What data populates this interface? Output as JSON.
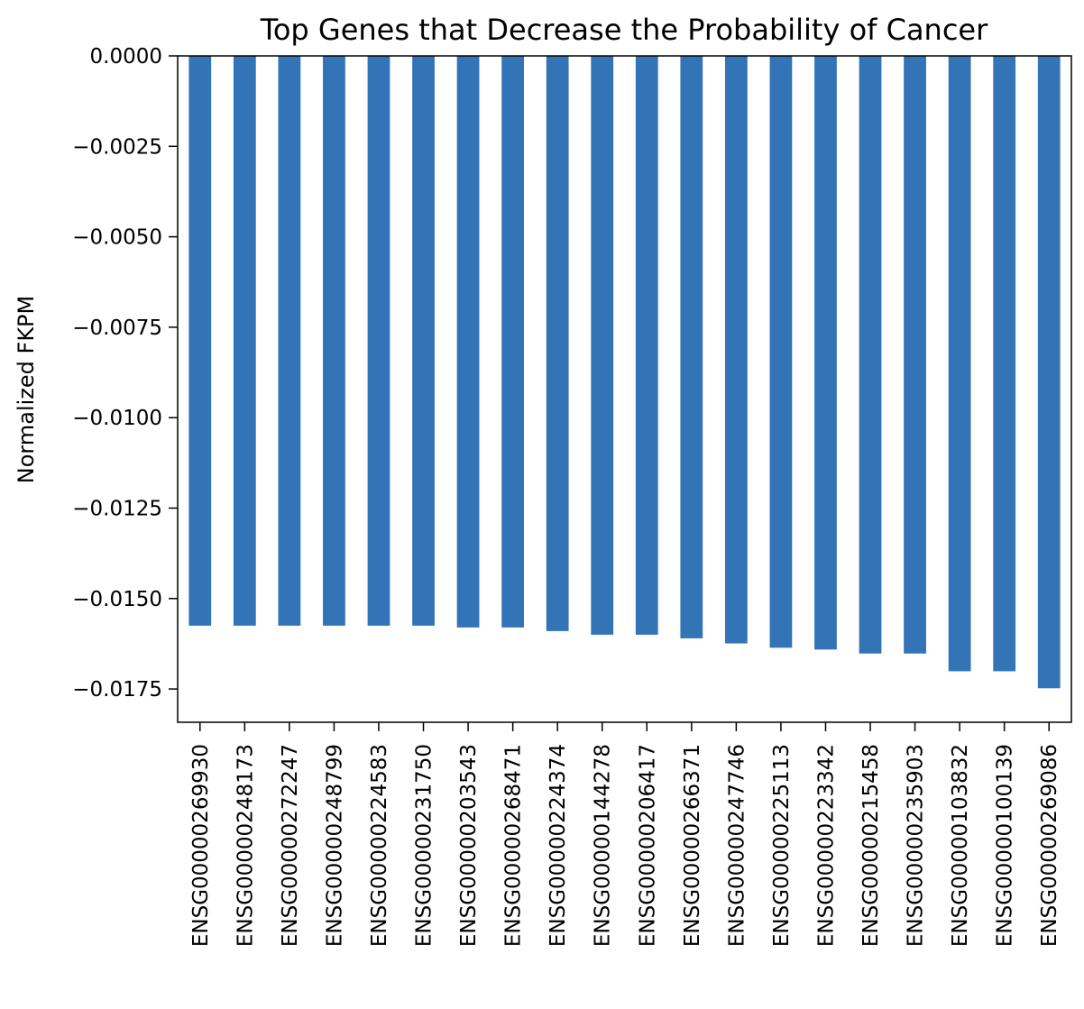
{
  "chart_data": {
    "type": "bar",
    "title": "Top Genes that Decrease the Probability of Cancer",
    "xlabel": "",
    "ylabel": "Normalized FKPM",
    "ylim": [
      -0.01842,
      0.0
    ],
    "yticks": [
      "0.0000",
      "−0.0025",
      "−0.0050",
      "−0.0075",
      "−0.0100",
      "−0.0125",
      "−0.0150",
      "−0.0175"
    ],
    "ytick_values": [
      0.0,
      -0.0025,
      -0.005,
      -0.0075,
      -0.01,
      -0.0125,
      -0.015,
      -0.0175
    ],
    "categories": [
      "ENSG00000269930",
      "ENSG00000248173",
      "ENSG00000272247",
      "ENSG00000248799",
      "ENSG00000224583",
      "ENSG00000231750",
      "ENSG00000203543",
      "ENSG00000268471",
      "ENSG00000224374",
      "ENSG00000144278",
      "ENSG00000206417",
      "ENSG00000266371",
      "ENSG00000247746",
      "ENSG00000225113",
      "ENSG00000223342",
      "ENSG00000215458",
      "ENSG00000235903",
      "ENSG00000103832",
      "ENSG00000100139",
      "ENSG00000269086"
    ],
    "values": [
      -0.01575,
      -0.01575,
      -0.01575,
      -0.01575,
      -0.01575,
      -0.01575,
      -0.0158,
      -0.0158,
      -0.0159,
      -0.016,
      -0.016,
      -0.0161,
      -0.01624,
      -0.01636,
      -0.01641,
      -0.01652,
      -0.01652,
      -0.01701,
      -0.01701,
      -0.01748
    ],
    "bar_color": "#3274b5",
    "grid": false,
    "legend": "none"
  }
}
